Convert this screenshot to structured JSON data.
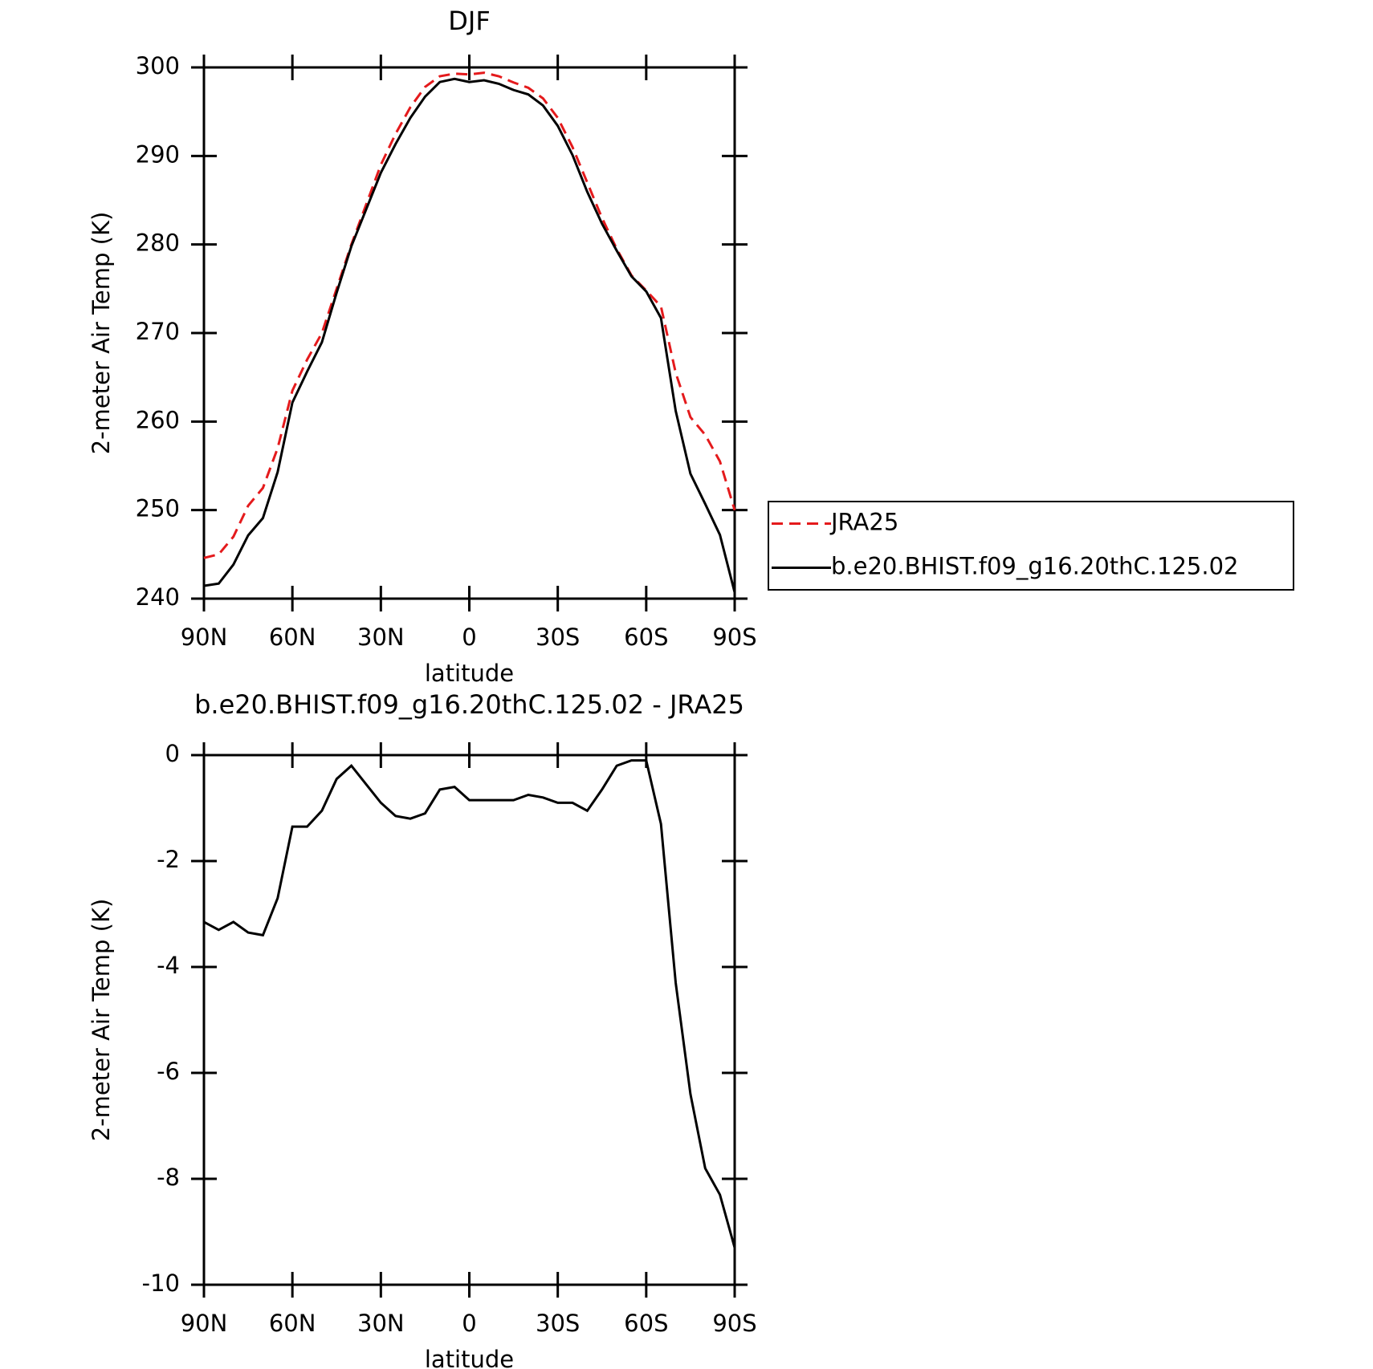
{
  "chart_data": [
    {
      "type": "line",
      "title": "DJF",
      "xlabel": "latitude",
      "ylabel": "2-meter Air Temp (K)",
      "x": [
        90,
        85,
        80,
        75,
        70,
        65,
        60,
        55,
        50,
        45,
        40,
        35,
        30,
        25,
        20,
        15,
        10,
        5,
        0,
        -5,
        -10,
        -15,
        -20,
        -25,
        -30,
        -35,
        -40,
        -45,
        -50,
        -55,
        -60,
        -65,
        -70,
        -75,
        -80,
        -85,
        -90
      ],
      "xlim": [
        90,
        -90
      ],
      "xticks": [
        {
          "value": 90,
          "label": "90N"
        },
        {
          "value": 60,
          "label": "60N"
        },
        {
          "value": 30,
          "label": "30N"
        },
        0,
        {
          "value": -30,
          "label": "30S"
        },
        {
          "value": -60,
          "label": "60S"
        },
        {
          "value": -90,
          "label": "90S"
        }
      ],
      "ylim": [
        240,
        300
      ],
      "yticks": [
        240,
        250,
        260,
        270,
        280,
        290,
        300
      ],
      "legend": "right",
      "series": [
        {
          "name": "JRA25",
          "color": "#e41a1c",
          "dashed": true,
          "values": [
            244.6,
            245.0,
            247.0,
            250.5,
            252.5,
            257.0,
            263.5,
            267.0,
            270.0,
            275.0,
            280.0,
            284.5,
            289.0,
            292.5,
            295.5,
            297.8,
            299.0,
            299.3,
            299.2,
            299.4,
            299.0,
            298.3,
            297.7,
            296.5,
            294.3,
            291.0,
            287.0,
            283.0,
            279.5,
            276.5,
            274.8,
            273.0,
            265.5,
            260.5,
            258.5,
            255.5,
            250.0
          ]
        },
        {
          "name": "b.e20.BHIST.f09_g16.20thC.125.02",
          "color": "#000000",
          "dashed": false,
          "values": [
            241.45,
            241.7,
            243.85,
            247.15,
            249.1,
            254.3,
            262.15,
            265.65,
            268.95,
            274.55,
            279.8,
            283.95,
            288.1,
            291.35,
            294.3,
            296.7,
            298.35,
            298.7,
            298.35,
            298.55,
            298.15,
            297.45,
            296.95,
            295.7,
            293.4,
            290.1,
            285.95,
            282.35,
            279.3,
            276.4,
            274.7,
            271.7,
            261.2,
            254.1,
            250.7,
            247.2,
            240.7
          ]
        }
      ]
    },
    {
      "type": "line",
      "title": "b.e20.BHIST.f09_g16.20thC.125.02 - JRA25",
      "xlabel": "latitude",
      "ylabel": "2-meter Air Temp (K)",
      "x": [
        90,
        85,
        80,
        75,
        70,
        65,
        60,
        55,
        50,
        45,
        40,
        35,
        30,
        25,
        20,
        15,
        10,
        5,
        0,
        -5,
        -10,
        -15,
        -20,
        -25,
        -30,
        -35,
        -40,
        -45,
        -50,
        -55,
        -60,
        -65,
        -70,
        -75,
        -80,
        -85,
        -90
      ],
      "xlim": [
        90,
        -90
      ],
      "xticks": [
        {
          "value": 90,
          "label": "90N"
        },
        {
          "value": 60,
          "label": "60N"
        },
        {
          "value": 30,
          "label": "30N"
        },
        0,
        {
          "value": -30,
          "label": "30S"
        },
        {
          "value": -60,
          "label": "60S"
        },
        {
          "value": -90,
          "label": "90S"
        }
      ],
      "ylim": [
        -10,
        0
      ],
      "yticks": [
        -10,
        -8,
        -6,
        -4,
        -2,
        0
      ],
      "color": "#000000",
      "values": [
        -3.15,
        -3.3,
        -3.15,
        -3.35,
        -3.4,
        -2.7,
        -1.35,
        -1.35,
        -1.05,
        -0.45,
        -0.2,
        -0.55,
        -0.9,
        -1.15,
        -1.2,
        -1.1,
        -0.65,
        -0.6,
        -0.85,
        -0.85,
        -0.85,
        -0.85,
        -0.75,
        -0.8,
        -0.9,
        -0.9,
        -1.05,
        -0.65,
        -0.2,
        -0.1,
        -0.1,
        -1.3,
        -4.3,
        -6.4,
        -7.8,
        -8.3,
        -9.3
      ]
    }
  ]
}
